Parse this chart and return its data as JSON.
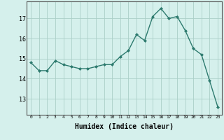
{
  "x": [
    0,
    1,
    2,
    3,
    4,
    5,
    6,
    7,
    8,
    9,
    10,
    11,
    12,
    13,
    14,
    15,
    16,
    17,
    18,
    19,
    20,
    21,
    22,
    23
  ],
  "y": [
    14.8,
    14.4,
    14.4,
    14.9,
    14.7,
    14.6,
    14.5,
    14.5,
    14.6,
    14.7,
    14.7,
    15.1,
    15.4,
    16.2,
    15.9,
    17.1,
    17.5,
    17.0,
    17.1,
    16.4,
    15.5,
    15.2,
    13.9,
    12.6
  ],
  "line_color": "#2d7a6e",
  "marker": "D",
  "markersize": 2.0,
  "linewidth": 1.0,
  "xlabel": "Humidex (Indice chaleur)",
  "xlabel_fontsize": 7.0,
  "ylabel_ticks": [
    13,
    14,
    15,
    16,
    17
  ],
  "xlim": [
    -0.5,
    23.5
  ],
  "ylim": [
    12.2,
    17.85
  ],
  "bg_color": "#d5f0ec",
  "grid_color": "#aacfc8",
  "spine_color": "#555555"
}
